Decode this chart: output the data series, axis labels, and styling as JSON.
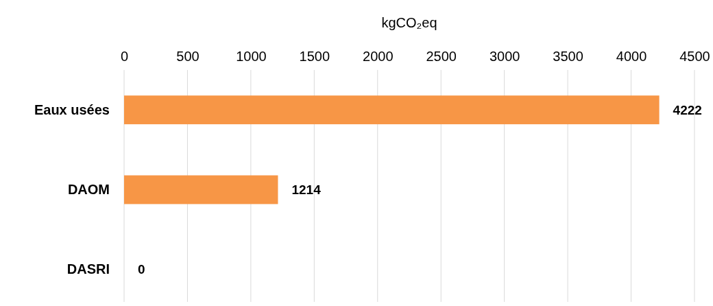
{
  "chart_data": {
    "type": "bar",
    "orientation": "horizontal",
    "xlabel": "kgCO₂eq",
    "categories": [
      "Eaux usées",
      "DAOM",
      "DASRI"
    ],
    "values": [
      4222,
      1214,
      0
    ],
    "color": "#f79646",
    "xlim": [
      0,
      4500
    ],
    "xticks": [
      0,
      500,
      1000,
      1500,
      2000,
      2500,
      3000,
      3500,
      4000,
      4500
    ],
    "grid": "x",
    "data_labels": true
  }
}
